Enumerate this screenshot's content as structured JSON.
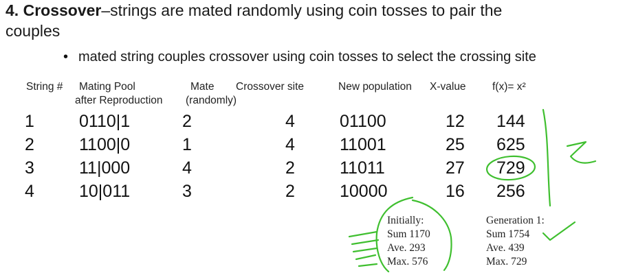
{
  "heading": {
    "number": "4.",
    "bold": "Crossover",
    "text_line1": "–strings are mated randomly using coin tosses to pair the",
    "text_line2": "couples"
  },
  "bullet": "mated string couples crossover using coin tosses to select the crossing site",
  "table": {
    "headers": {
      "string": "String #",
      "mating_pool_1": "Mating Pool",
      "mating_pool_2": "after Reproduction",
      "mate_1": "Mate",
      "mate_2": "(randomly)",
      "crossover": "Crossover site",
      "new_pop": "New population",
      "xvalue": "X-value",
      "fx": "f(x)= x²"
    },
    "rows": [
      {
        "string": "1",
        "pool": "0110|1",
        "mate": "2",
        "site": "4",
        "new": "01100",
        "x": "12",
        "fx": "144"
      },
      {
        "string": "2",
        "pool": "1100|0",
        "mate": "1",
        "site": "4",
        "new": "11001",
        "x": "25",
        "fx": "625"
      },
      {
        "string": "3",
        "pool": "11|000",
        "mate": "4",
        "site": "2",
        "new": "11011",
        "x": "27",
        "fx": "729"
      },
      {
        "string": "4",
        "pool": "10|011",
        "mate": "3",
        "site": "2",
        "new": "10000",
        "x": "16",
        "fx": "256"
      }
    ]
  },
  "stats_initial": [
    "Initially:",
    "Sum 1170",
    "Ave. 293",
    "Max. 576"
  ],
  "stats_generation": [
    "Generation 1:",
    "Sum 1754",
    "Ave. 439",
    "Max. 729"
  ],
  "colors": {
    "ink": "#3fbf2f",
    "text": "#111111"
  }
}
